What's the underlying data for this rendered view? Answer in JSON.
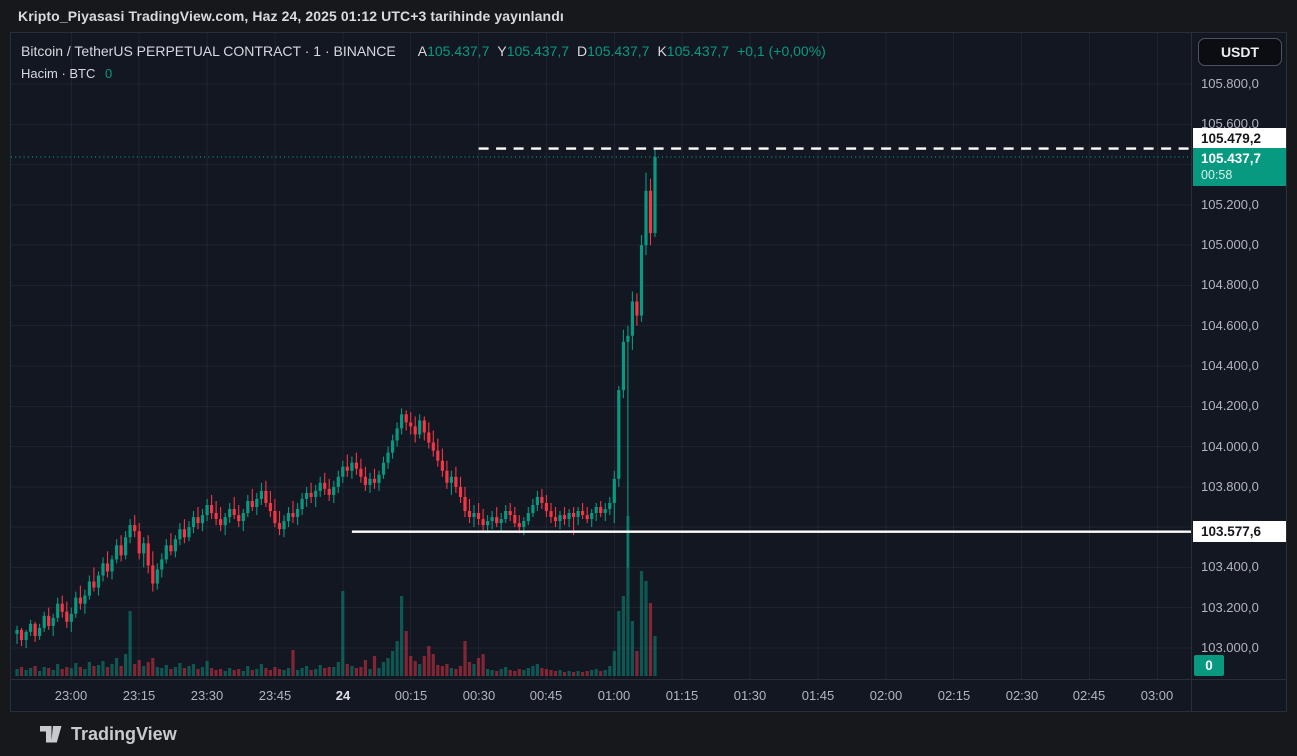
{
  "publish_bar": {
    "text": "Kripto_Piyasasi TradingView.com, Haz 24, 2025 01:12 UTC+3 tarihinde yayınlandı"
  },
  "header": {
    "symbol_title": "Bitcoin / TetherUS PERPETUAL CONTRACT · 1 · BINANCE",
    "ohlc": [
      {
        "k": "A",
        "v": "105.437,7"
      },
      {
        "k": "Y",
        "v": "105.437,7"
      },
      {
        "k": "D",
        "v": "105.437,7"
      },
      {
        "k": "K",
        "v": "105.437,7"
      }
    ],
    "change": "+0,1 (+0,00%)",
    "volume_label": "Hacim · BTC",
    "volume_value": "0",
    "currency_button": "USDT"
  },
  "price_axis": {
    "ticks": [
      {
        "label": "105.800,0",
        "value": 105800
      },
      {
        "label": "105.600,0",
        "value": 105600
      },
      {
        "label": "105.400,0",
        "value": 105400
      },
      {
        "label": "105.200,0",
        "value": 105200
      },
      {
        "label": "105.000,0",
        "value": 105000
      },
      {
        "label": "104.800,0",
        "value": 104800
      },
      {
        "label": "104.600,0",
        "value": 104600
      },
      {
        "label": "104.400,0",
        "value": 104400
      },
      {
        "label": "104.200,0",
        "value": 104200
      },
      {
        "label": "104.000,0",
        "value": 104000
      },
      {
        "label": "103.800,0",
        "value": 103800
      },
      {
        "label": "103.600,0",
        "value": 103600
      },
      {
        "label": "103.400,0",
        "value": 103400
      },
      {
        "label": "103.200,0",
        "value": 103200
      },
      {
        "label": "103.000,0",
        "value": 103000
      }
    ],
    "high_label": {
      "text": "105.479,2",
      "price": 105479.2
    },
    "last_label": {
      "text": "105.437,7",
      "countdown": "00:58",
      "price": 105437.7
    },
    "support_label": {
      "text": "103.577,6",
      "price": 103577.6
    },
    "volume_badge": "0"
  },
  "time_axis": {
    "ticks": [
      {
        "label": "23:00",
        "time": "23:00"
      },
      {
        "label": "23:15",
        "time": "23:15"
      },
      {
        "label": "23:30",
        "time": "23:30"
      },
      {
        "label": "23:45",
        "time": "23:45"
      },
      {
        "label": "24",
        "time": "00:00",
        "bold": true
      },
      {
        "label": "00:15",
        "time": "00:15"
      },
      {
        "label": "00:30",
        "time": "00:30"
      },
      {
        "label": "00:45",
        "time": "00:45"
      },
      {
        "label": "01:00",
        "time": "01:00"
      },
      {
        "label": "01:15",
        "time": "01:15"
      },
      {
        "label": "01:30",
        "time": "01:30"
      },
      {
        "label": "01:45",
        "time": "01:45"
      },
      {
        "label": "02:00",
        "time": "02:00"
      },
      {
        "label": "02:15",
        "time": "02:15"
      },
      {
        "label": "02:30",
        "time": "02:30"
      },
      {
        "label": "02:45",
        "time": "02:45"
      },
      {
        "label": "03:00",
        "time": "03:00"
      }
    ]
  },
  "footer": {
    "logo_text": "TradingView"
  },
  "colors": {
    "background": "#131722",
    "outer": "#17181c",
    "up": "#089981",
    "down": "#f23645",
    "accent": "#089981",
    "axis_text": "#b2b5be",
    "label_white_bg": "#ffffff"
  },
  "chart_data": {
    "type": "candlestick",
    "title": "Bitcoin / TetherUS PERPETUAL CONTRACT, 1 minute, BINANCE",
    "x_unit": "time (1-minute bars)",
    "y_unit": "price (USDT)",
    "y_axis": {
      "top_tick": 105800,
      "bottom_tick": 103000,
      "tick_step": 200
    },
    "grid": true,
    "levels": [
      {
        "type": "horizontal_dashed",
        "price": 105479.2,
        "from_time": "00:30",
        "color": "#ffffff"
      },
      {
        "type": "last_price_dotted",
        "price": 105437.7,
        "from_time": null,
        "color": "#089981"
      },
      {
        "type": "horizontal_solid",
        "price": 103577.6,
        "from_time": "00:02",
        "color": "#ffffff"
      }
    ],
    "columns": [
      "time",
      "open",
      "high",
      "low",
      "close",
      "volume_rel"
    ],
    "candles": [
      [
        "22:48",
        103070,
        103110,
        103020,
        103090,
        7
      ],
      [
        "22:49",
        103090,
        103100,
        103010,
        103040,
        9
      ],
      [
        "22:50",
        103040,
        103090,
        103000,
        103080,
        6
      ],
      [
        "22:51",
        103080,
        103140,
        103060,
        103120,
        8
      ],
      [
        "22:52",
        103120,
        103130,
        103030,
        103060,
        10
      ],
      [
        "22:53",
        103060,
        103120,
        103040,
        103100,
        5
      ],
      [
        "22:54",
        103100,
        103180,
        103080,
        103160,
        9
      ],
      [
        "22:55",
        103160,
        103200,
        103090,
        103110,
        8
      ],
      [
        "22:56",
        103110,
        103170,
        103060,
        103150,
        6
      ],
      [
        "22:57",
        103150,
        103250,
        103130,
        103220,
        12
      ],
      [
        "22:58",
        103220,
        103260,
        103150,
        103180,
        7
      ],
      [
        "22:59",
        103180,
        103230,
        103100,
        103130,
        9
      ],
      [
        "23:00",
        103130,
        103200,
        103080,
        103170,
        8
      ],
      [
        "23:01",
        103170,
        103280,
        103150,
        103250,
        13
      ],
      [
        "23:02",
        103250,
        103310,
        103190,
        103220,
        9
      ],
      [
        "23:03",
        103220,
        103290,
        103170,
        103260,
        7
      ],
      [
        "23:04",
        103260,
        103360,
        103240,
        103330,
        14
      ],
      [
        "23:05",
        103330,
        103400,
        103280,
        103300,
        10
      ],
      [
        "23:06",
        103300,
        103380,
        103260,
        103360,
        11
      ],
      [
        "23:07",
        103360,
        103450,
        103330,
        103420,
        15
      ],
      [
        "23:08",
        103420,
        103480,
        103350,
        103380,
        9
      ],
      [
        "23:09",
        103380,
        103460,
        103340,
        103440,
        12
      ],
      [
        "23:10",
        103440,
        103540,
        103420,
        103510,
        18
      ],
      [
        "23:11",
        103510,
        103560,
        103430,
        103460,
        10
      ],
      [
        "23:12",
        103460,
        103580,
        103440,
        103550,
        22
      ],
      [
        "23:13",
        103550,
        103640,
        103520,
        103610,
        65
      ],
      [
        "23:14",
        103610,
        103660,
        103550,
        103580,
        12
      ],
      [
        "23:15",
        103580,
        103620,
        103440,
        103470,
        16
      ],
      [
        "23:16",
        103470,
        103550,
        103400,
        103520,
        10
      ],
      [
        "23:17",
        103520,
        103560,
        103370,
        103410,
        14
      ],
      [
        "23:18",
        103410,
        103480,
        103280,
        103320,
        18
      ],
      [
        "23:19",
        103320,
        103420,
        103290,
        103390,
        9
      ],
      [
        "23:20",
        103390,
        103470,
        103350,
        103440,
        8
      ],
      [
        "23:21",
        103440,
        103540,
        103420,
        103510,
        11
      ],
      [
        "23:22",
        103510,
        103570,
        103460,
        103480,
        7
      ],
      [
        "23:23",
        103480,
        103560,
        103450,
        103540,
        9
      ],
      [
        "23:24",
        103540,
        103620,
        103510,
        103590,
        13
      ],
      [
        "23:25",
        103590,
        103640,
        103520,
        103550,
        8
      ],
      [
        "23:26",
        103550,
        103630,
        103530,
        103600,
        10
      ],
      [
        "23:27",
        103600,
        103680,
        103570,
        103650,
        12
      ],
      [
        "23:28",
        103650,
        103700,
        103590,
        103620,
        7
      ],
      [
        "23:29",
        103620,
        103690,
        103580,
        103660,
        9
      ],
      [
        "23:30",
        103660,
        103740,
        103630,
        103710,
        15
      ],
      [
        "23:31",
        103710,
        103760,
        103640,
        103670,
        8
      ],
      [
        "23:32",
        103670,
        103730,
        103610,
        103640,
        6
      ],
      [
        "23:33",
        103640,
        103700,
        103580,
        103610,
        7
      ],
      [
        "23:34",
        103610,
        103670,
        103560,
        103650,
        5
      ],
      [
        "23:35",
        103650,
        103720,
        103620,
        103690,
        8
      ],
      [
        "23:36",
        103690,
        103750,
        103640,
        103660,
        6
      ],
      [
        "23:37",
        103660,
        103710,
        103600,
        103630,
        7
      ],
      [
        "23:38",
        103630,
        103690,
        103580,
        103670,
        5
      ],
      [
        "23:39",
        103670,
        103760,
        103650,
        103730,
        10
      ],
      [
        "23:40",
        103730,
        103790,
        103680,
        103700,
        6
      ],
      [
        "23:41",
        103700,
        103770,
        103660,
        103740,
        7
      ],
      [
        "23:42",
        103740,
        103820,
        103710,
        103780,
        12
      ],
      [
        "23:43",
        103780,
        103830,
        103700,
        103720,
        8
      ],
      [
        "23:44",
        103720,
        103780,
        103650,
        103680,
        6
      ],
      [
        "23:45",
        103680,
        103740,
        103600,
        103620,
        9
      ],
      [
        "23:46",
        103620,
        103680,
        103560,
        103590,
        7
      ],
      [
        "23:47",
        103590,
        103660,
        103550,
        103630,
        6
      ],
      [
        "23:48",
        103630,
        103700,
        103600,
        103670,
        8
      ],
      [
        "23:49",
        103670,
        103730,
        103620,
        103650,
        26
      ],
      [
        "23:50",
        103650,
        103720,
        103610,
        103690,
        6
      ],
      [
        "23:51",
        103690,
        103770,
        103660,
        103740,
        8
      ],
      [
        "23:52",
        103740,
        103800,
        103700,
        103770,
        10
      ],
      [
        "23:53",
        103770,
        103820,
        103720,
        103750,
        6
      ],
      [
        "23:54",
        103750,
        103810,
        103700,
        103780,
        7
      ],
      [
        "23:55",
        103780,
        103850,
        103750,
        103820,
        11
      ],
      [
        "23:56",
        103820,
        103870,
        103760,
        103790,
        8
      ],
      [
        "23:57",
        103790,
        103840,
        103730,
        103760,
        9
      ],
      [
        "23:58",
        103760,
        103830,
        103720,
        103800,
        9
      ],
      [
        "23:59",
        103800,
        103880,
        103770,
        103850,
        14
      ],
      [
        "00:00",
        103850,
        103930,
        103820,
        103900,
        85
      ],
      [
        "00:01",
        103900,
        103960,
        103850,
        103880,
        12
      ],
      [
        "00:02",
        103880,
        103950,
        103840,
        103920,
        10
      ],
      [
        "00:03",
        103920,
        103970,
        103860,
        103890,
        8
      ],
      [
        "00:04",
        103890,
        103940,
        103820,
        103850,
        9
      ],
      [
        "00:05",
        103850,
        103900,
        103780,
        103810,
        16
      ],
      [
        "00:06",
        103810,
        103870,
        103770,
        103840,
        7
      ],
      [
        "00:07",
        103840,
        103890,
        103790,
        103820,
        20
      ],
      [
        "00:08",
        103820,
        103880,
        103780,
        103860,
        8
      ],
      [
        "00:09",
        103860,
        103950,
        103840,
        103920,
        14
      ],
      [
        "00:10",
        103920,
        104000,
        103890,
        103970,
        18
      ],
      [
        "00:11",
        103970,
        104060,
        103940,
        104030,
        25
      ],
      [
        "00:12",
        104030,
        104120,
        104000,
        104090,
        35
      ],
      [
        "00:13",
        104090,
        104190,
        104060,
        104160,
        80
      ],
      [
        "00:14",
        104160,
        104180,
        104080,
        104120,
        45
      ],
      [
        "00:15",
        104120,
        104170,
        104060,
        104100,
        20
      ],
      [
        "00:16",
        104100,
        104150,
        104020,
        104060,
        15
      ],
      [
        "00:17",
        104060,
        104160,
        104040,
        104130,
        12
      ],
      [
        "00:18",
        104130,
        104150,
        104030,
        104070,
        20
      ],
      [
        "00:19",
        104070,
        104120,
        103990,
        104020,
        30
      ],
      [
        "00:20",
        104020,
        104080,
        103950,
        103980,
        22
      ],
      [
        "00:21",
        103980,
        104040,
        103900,
        103930,
        11
      ],
      [
        "00:22",
        103930,
        103990,
        103850,
        103880,
        10
      ],
      [
        "00:23",
        103880,
        103930,
        103790,
        103820,
        12
      ],
      [
        "00:24",
        103820,
        103880,
        103760,
        103850,
        8
      ],
      [
        "00:25",
        103850,
        103900,
        103770,
        103800,
        7
      ],
      [
        "00:26",
        103800,
        103850,
        103720,
        103750,
        10
      ],
      [
        "00:27",
        103750,
        103800,
        103650,
        103680,
        35
      ],
      [
        "00:28",
        103680,
        103740,
        103620,
        103650,
        14
      ],
      [
        "00:29",
        103650,
        103710,
        103600,
        103670,
        12
      ],
      [
        "00:30",
        103670,
        103720,
        103610,
        103640,
        18
      ],
      [
        "00:31",
        103640,
        103690,
        103580,
        103610,
        22
      ],
      [
        "00:32",
        103610,
        103660,
        103570,
        103630,
        7
      ],
      [
        "00:33",
        103630,
        103680,
        103590,
        103650,
        6
      ],
      [
        "00:34",
        103650,
        103700,
        103600,
        103620,
        5
      ],
      [
        "00:35",
        103620,
        103670,
        103580,
        103640,
        7
      ],
      [
        "00:36",
        103640,
        103710,
        103620,
        103680,
        9
      ],
      [
        "00:37",
        103680,
        103720,
        103630,
        103660,
        6
      ],
      [
        "00:38",
        103660,
        103700,
        103600,
        103620,
        5
      ],
      [
        "00:39",
        103620,
        103660,
        103570,
        103600,
        7
      ],
      [
        "00:40",
        103600,
        103650,
        103560,
        103630,
        6
      ],
      [
        "00:41",
        103630,
        103700,
        103610,
        103670,
        8
      ],
      [
        "00:42",
        103670,
        103740,
        103650,
        103710,
        10
      ],
      [
        "00:43",
        103710,
        103780,
        103680,
        103750,
        12
      ],
      [
        "00:44",
        103750,
        103790,
        103690,
        103720,
        8
      ],
      [
        "00:45",
        103720,
        103760,
        103650,
        103680,
        7
      ],
      [
        "00:46",
        103680,
        103720,
        103620,
        103650,
        6
      ],
      [
        "00:47",
        103650,
        103700,
        103600,
        103630,
        5
      ],
      [
        "00:48",
        103630,
        103680,
        103590,
        103660,
        6
      ],
      [
        "00:49",
        103660,
        103700,
        103610,
        103640,
        4
      ],
      [
        "00:50",
        103640,
        103690,
        103600,
        103670,
        5
      ],
      [
        "00:51",
        103670,
        103700,
        103560,
        103650,
        4
      ],
      [
        "00:52",
        103650,
        103700,
        103610,
        103680,
        5
      ],
      [
        "00:53",
        103680,
        103720,
        103640,
        103660,
        4
      ],
      [
        "00:54",
        103660,
        103700,
        103620,
        103640,
        5
      ],
      [
        "00:55",
        103640,
        103690,
        103600,
        103670,
        6
      ],
      [
        "00:56",
        103670,
        103720,
        103630,
        103700,
        7
      ],
      [
        "00:57",
        103700,
        103730,
        103650,
        103670,
        5
      ],
      [
        "00:58",
        103670,
        103720,
        103630,
        103690,
        6
      ],
      [
        "00:59",
        103690,
        103750,
        103660,
        103720,
        10
      ],
      [
        "01:00",
        103720,
        103880,
        103620,
        103840,
        25
      ],
      [
        "01:01",
        103840,
        104300,
        103800,
        104280,
        65
      ],
      [
        "01:02",
        104280,
        104580,
        104240,
        104520,
        80
      ],
      [
        "01:03",
        104520,
        104600,
        103400,
        104550,
        160
      ],
      [
        "01:04",
        104550,
        104770,
        104480,
        104720,
        55
      ],
      [
        "01:05",
        104720,
        104760,
        104600,
        104650,
        25
      ],
      [
        "01:06",
        104650,
        105050,
        104620,
        105000,
        105
      ],
      [
        "01:07",
        105000,
        105360,
        104950,
        105270,
        95
      ],
      [
        "01:08",
        105270,
        105330,
        105000,
        105060,
        73
      ],
      [
        "01:09",
        105060,
        105479.2,
        105040,
        105437.7,
        40
      ]
    ]
  }
}
